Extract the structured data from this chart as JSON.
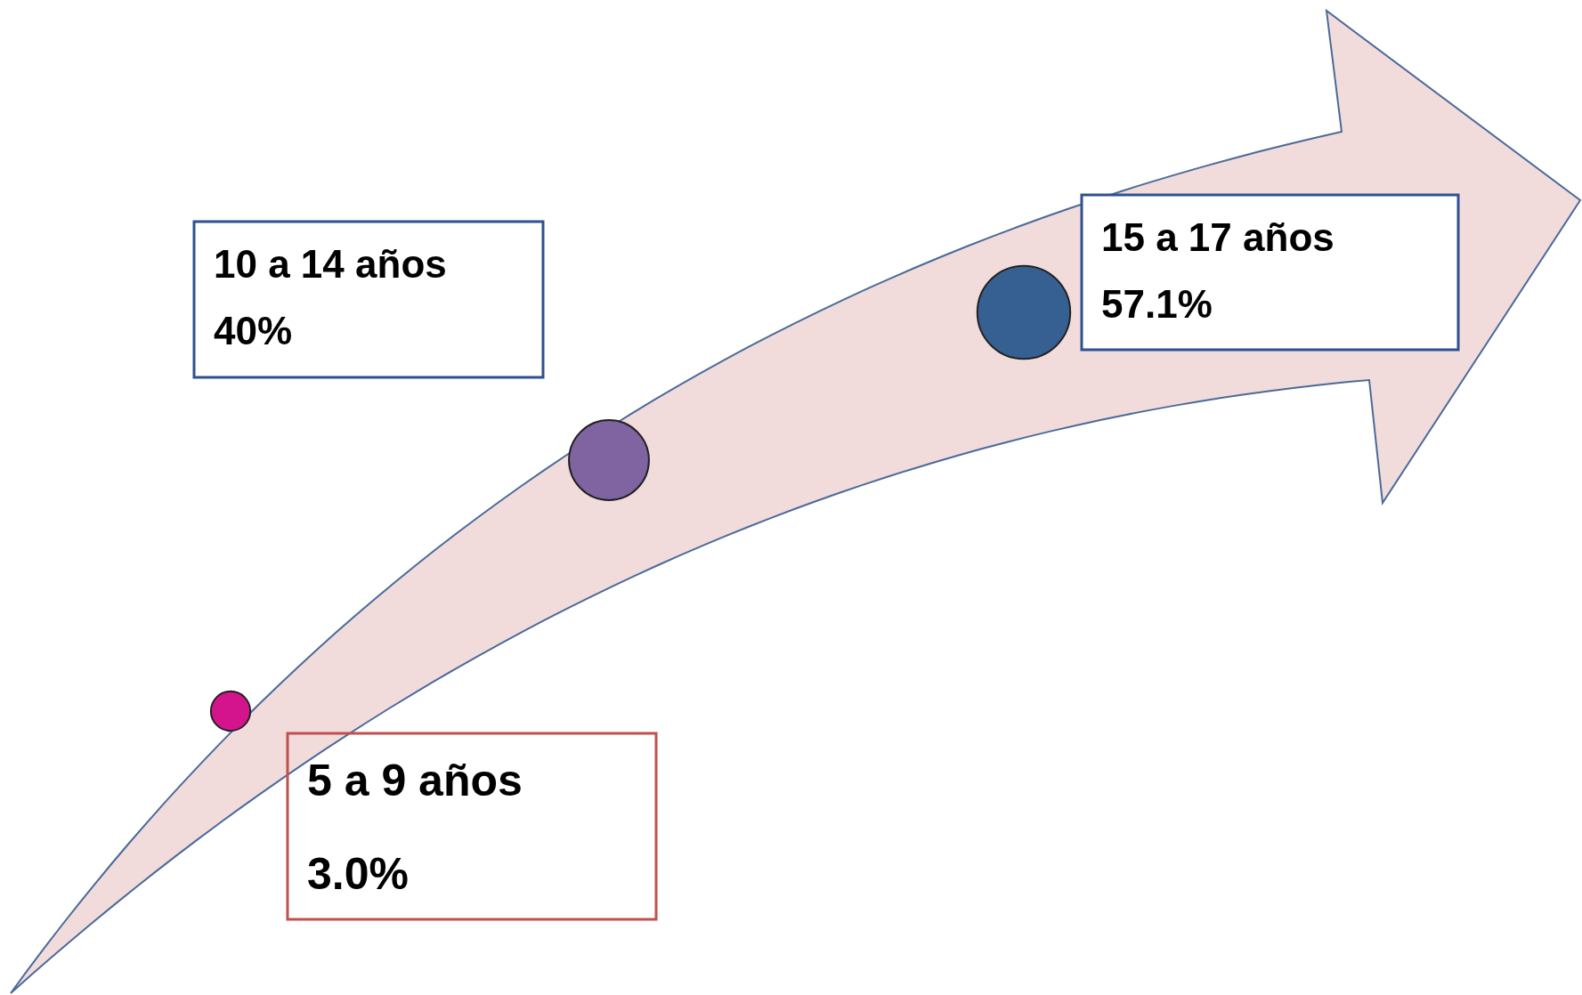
{
  "chart_data": {
    "type": "other",
    "categories": [
      "5 a 9 años",
      "10 a 14 años",
      "15 a 17 años"
    ],
    "values": [
      3.0,
      40,
      57.1
    ],
    "value_labels": [
      "3.0%",
      "40%",
      "57.1%"
    ],
    "colors": [
      "#d4148c",
      "#8064a2",
      "#366092"
    ]
  }
}
